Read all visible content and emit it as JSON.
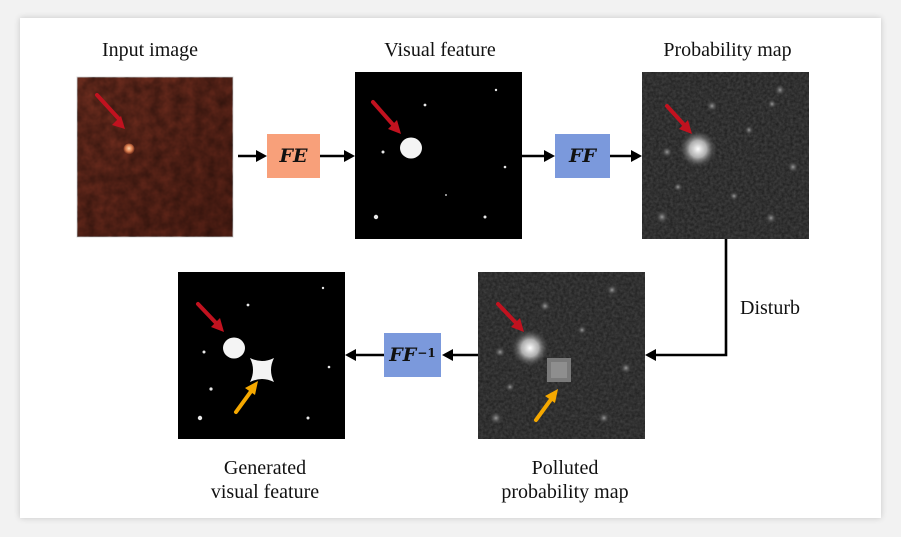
{
  "labels": {
    "input_image": "Input image",
    "visual_feature": "Visual feature",
    "probability_map": "Probability map",
    "disturb": "Disturb",
    "generated_line1": "Generated",
    "generated_line2": "visual feature",
    "polluted_line1": "Polluted",
    "polluted_line2": "probability map"
  },
  "blocks": {
    "fe": "FE",
    "ff": "FF",
    "ff_inv_base": "FF",
    "ff_inv_exp": "−1"
  },
  "colors": {
    "fe_box": "#f8a07a",
    "ff_box": "#7b99dc",
    "red_arrow": "#c1121f",
    "orange_arrow": "#f5a800",
    "leather": "#6b2a1c"
  }
}
